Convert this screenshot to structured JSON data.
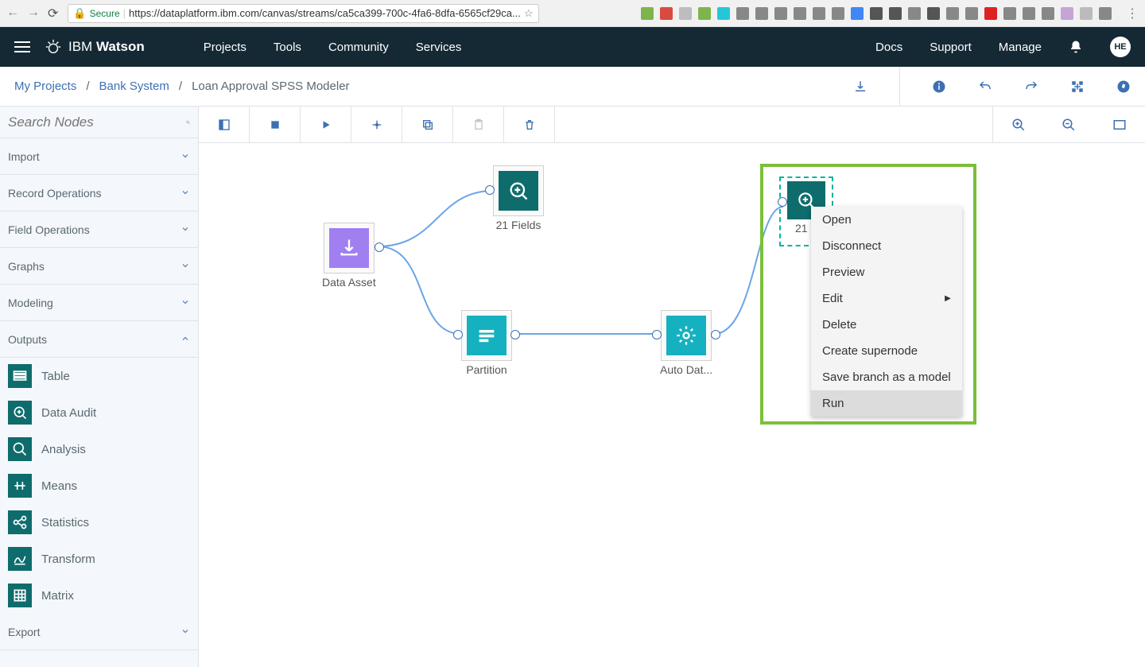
{
  "browser": {
    "url": "https://dataplatform.ibm.com/canvas/streams/ca5ca399-700c-4fa6-8dfa-6565cf29ca...",
    "secure_label": "Secure",
    "ext_colors": [
      "#7fb34c",
      "#d94b3f",
      "#bdbdbd",
      "#7fb34c",
      "#26c6da",
      "#888",
      "#888",
      "#888",
      "#888",
      "#888",
      "#888",
      "#4285f4",
      "#555",
      "#555",
      "#888",
      "#555",
      "#888",
      "#888",
      "#d22",
      "#888",
      "#888",
      "#888",
      "#c5a5d6",
      "#bbb",
      "#888"
    ]
  },
  "header": {
    "brand_a": "IBM ",
    "brand_b": "Watson",
    "nav": [
      "Projects",
      "Tools",
      "Community",
      "Services"
    ],
    "right": [
      "Docs",
      "Support",
      "Manage"
    ],
    "avatar": "HE"
  },
  "breadcrumbs": {
    "a": "My Projects",
    "b": "Bank System",
    "c": "Loan Approval SPSS Modeler"
  },
  "sidebar": {
    "search_placeholder": "Search Nodes",
    "cats": [
      {
        "label": "Import",
        "open": false
      },
      {
        "label": "Record Operations",
        "open": false
      },
      {
        "label": "Field Operations",
        "open": false
      },
      {
        "label": "Graphs",
        "open": false
      },
      {
        "label": "Modeling",
        "open": false
      },
      {
        "label": "Outputs",
        "open": true
      },
      {
        "label": "Export",
        "open": false
      }
    ],
    "outputs": [
      "Table",
      "Data Audit",
      "Analysis",
      "Means",
      "Statistics",
      "Transform",
      "Matrix"
    ]
  },
  "nodes": {
    "dataAsset": {
      "label": "Data Asset",
      "color": "#a07ff0"
    },
    "fields1": {
      "label": "21 Fields",
      "color": "#0f6c6c"
    },
    "partition": {
      "label": "Partition",
      "color": "#16b1c0"
    },
    "autodat": {
      "label": "Auto Dat...",
      "color": "#16b1c0"
    },
    "fields2": {
      "label": "21 F",
      "color": "#0f6c6c"
    }
  },
  "contextMenu": {
    "items": [
      "Open",
      "Disconnect",
      "Preview",
      "Edit",
      "Delete",
      "Create supernode",
      "Save branch as a model",
      "Run"
    ],
    "submenu_idx": 3,
    "hover_idx": 7
  },
  "colors": {
    "link": "#3d70b2",
    "edge": "#6aa6e6"
  }
}
